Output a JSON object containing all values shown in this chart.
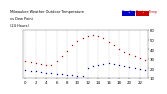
{
  "title": "Milwaukee Weather Outdoor Temperature vs Dew Point (24 Hours)",
  "temp_color": "#cc0000",
  "dew_color": "#0000cc",
  "background_color": "#ffffff",
  "grid_color": "#bbbbbb",
  "hours": [
    0,
    1,
    2,
    3,
    4,
    5,
    6,
    7,
    8,
    9,
    10,
    11,
    12,
    13,
    14,
    15,
    16,
    17,
    18,
    19,
    20,
    21,
    22,
    23
  ],
  "temp_values": [
    28,
    27,
    26,
    25,
    24,
    23,
    28,
    33,
    38,
    44,
    49,
    52,
    54,
    55,
    54,
    52,
    48,
    44,
    40,
    37,
    35,
    33,
    31,
    29
  ],
  "dew_values": [
    18,
    17,
    17,
    16,
    15,
    15,
    14,
    14,
    13,
    13,
    12,
    12,
    20,
    22,
    24,
    25,
    26,
    25,
    23,
    22,
    21,
    20,
    19,
    18
  ],
  "ylim": [
    10,
    60
  ],
  "yticks": [
    10,
    20,
    30,
    40,
    50,
    60
  ],
  "xticks": [
    0,
    2,
    4,
    6,
    8,
    10,
    12,
    14,
    16,
    18,
    20,
    22
  ],
  "xtick_labels": [
    "0",
    "2",
    "4",
    "6",
    "8",
    "10",
    "12",
    "14",
    "16",
    "18",
    "20",
    "22"
  ],
  "legend_blue_label": "Dew Point",
  "legend_red_label": "Outdoor Temp",
  "title_fontsize": 3.0,
  "tick_fontsize": 2.8,
  "marker_size": 1.0
}
